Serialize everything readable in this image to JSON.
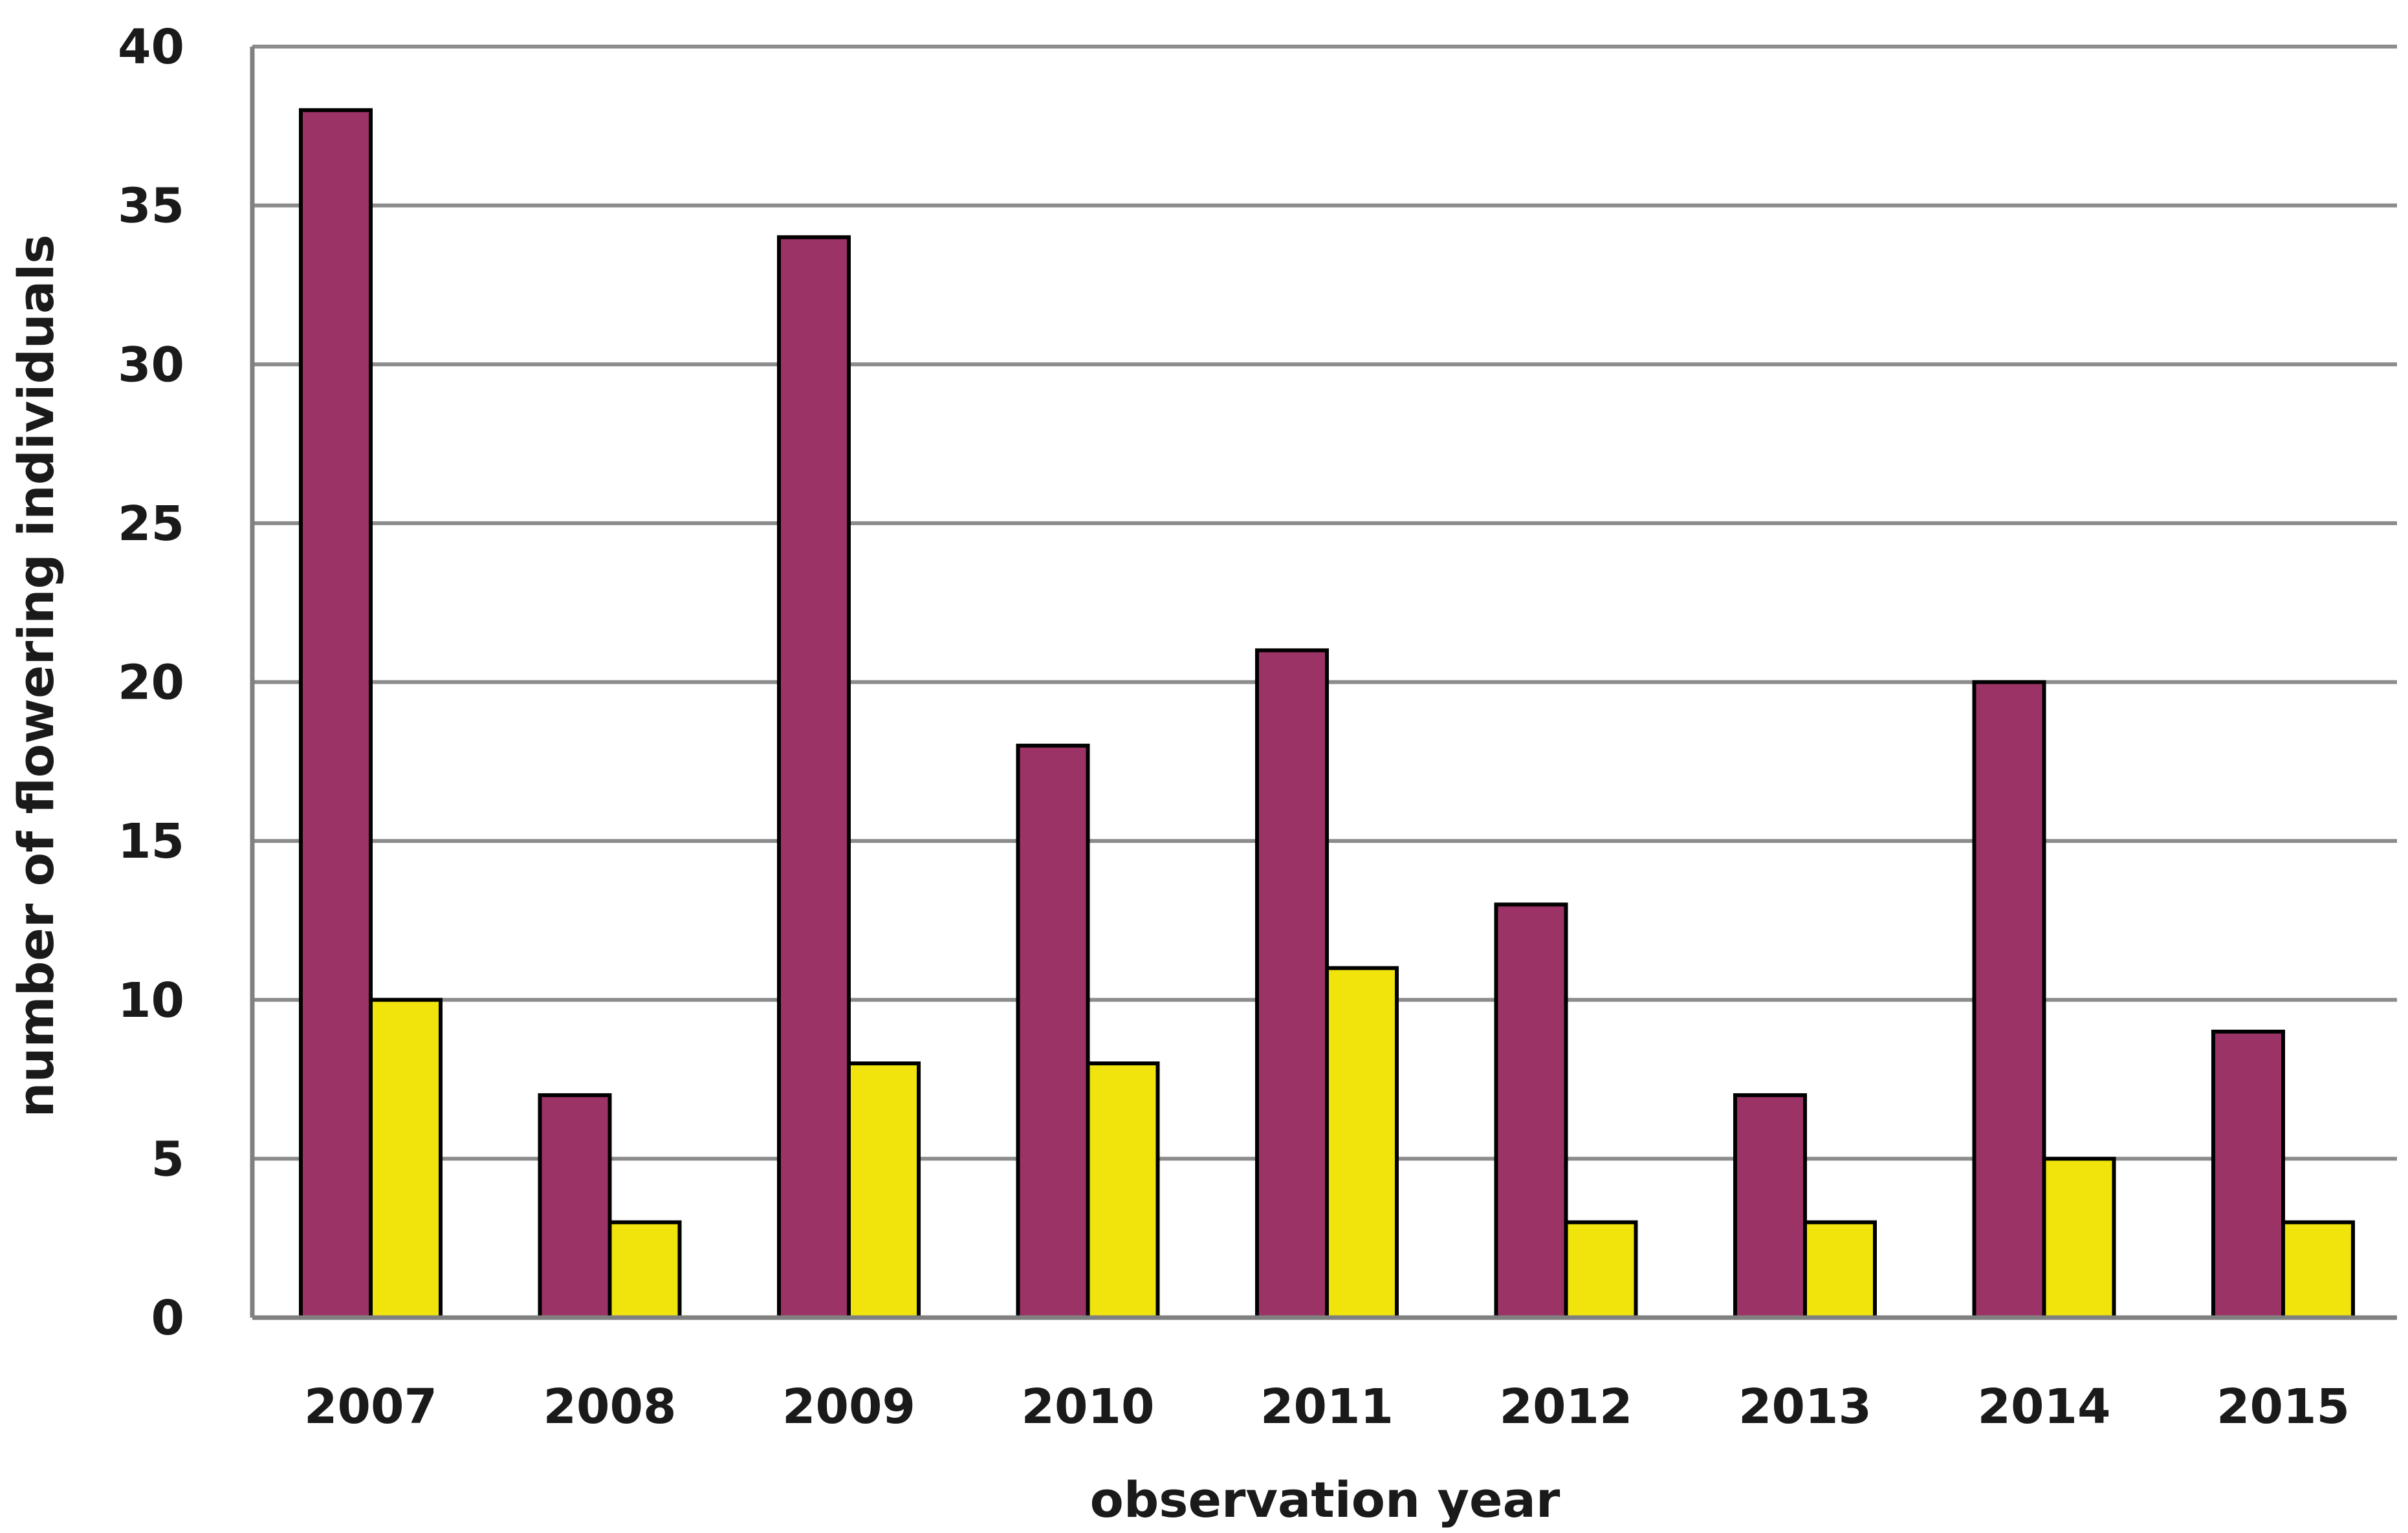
{
  "chart_data": {
    "type": "bar",
    "categories": [
      "2007",
      "2008",
      "2009",
      "2010",
      "2011",
      "2012",
      "2013",
      "2014",
      "2015"
    ],
    "series": [
      {
        "color": "#9c3366",
        "values": [
          38,
          7,
          34,
          18,
          21,
          13,
          7,
          20,
          9
        ]
      },
      {
        "color": "#f0e40c",
        "values": [
          10,
          3,
          8,
          8,
          11,
          3,
          3,
          5,
          3
        ]
      }
    ],
    "xlabel": "observation year",
    "ylabel": "number of flowering individuals",
    "ylim": [
      0,
      40
    ],
    "yticks": [
      "0",
      "5",
      "10",
      "15",
      "20",
      "25",
      "30",
      "35",
      "40"
    ],
    "grid": true,
    "legend": "none"
  }
}
